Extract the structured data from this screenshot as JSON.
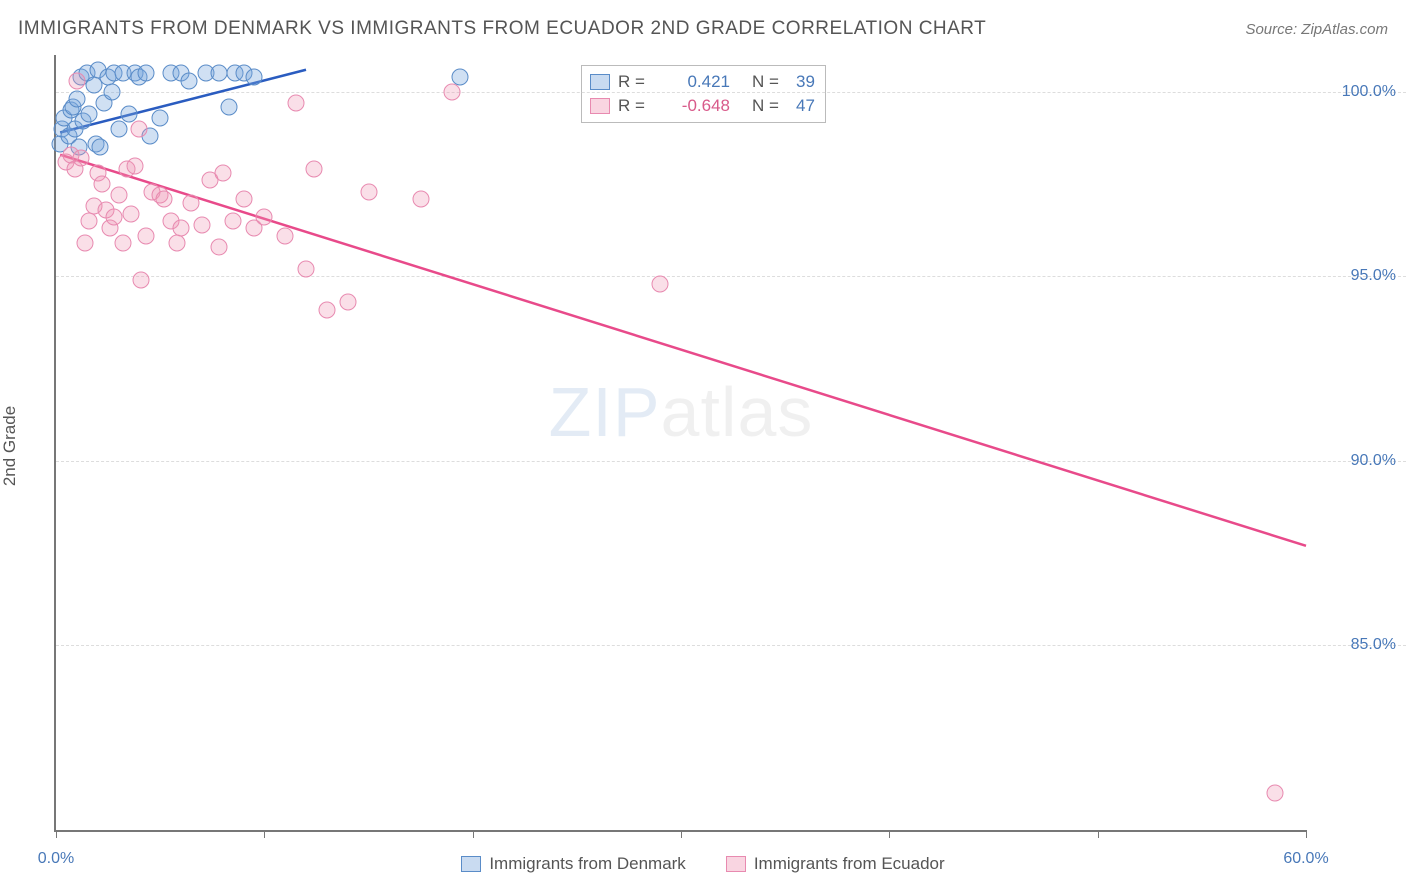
{
  "title": "IMMIGRANTS FROM DENMARK VS IMMIGRANTS FROM ECUADOR 2ND GRADE CORRELATION CHART",
  "source": "Source: ZipAtlas.com",
  "ylabel": "2nd Grade",
  "watermark_left": "ZIP",
  "watermark_right": "atlas",
  "chart": {
    "type": "scatter",
    "background_color": "#ffffff",
    "grid_color": "#dddddd",
    "axis_color": "#777777",
    "xlim": [
      0,
      60
    ],
    "ylim": [
      80,
      101
    ],
    "x_ticks": [
      0,
      10,
      20,
      30,
      40,
      50,
      60
    ],
    "x_tick_labels": [
      "0.0%",
      "",
      "",
      "",
      "",
      "",
      "60.0%"
    ],
    "y_ticks": [
      85,
      90,
      95,
      100
    ],
    "y_tick_labels": [
      "85.0%",
      "90.0%",
      "95.0%",
      "100.0%"
    ],
    "marker_radius": 8.5,
    "label_fontsize": 16,
    "label_color": "#4878b8",
    "series": [
      {
        "name": "Immigrants from Denmark",
        "color_fill": "rgba(120,165,220,0.35)",
        "color_stroke": "#5a8cc8",
        "trend_color": "#2a5cc0",
        "r": 0.421,
        "n": 39,
        "trendline": {
          "x1": 0.2,
          "y1": 98.9,
          "x2": 12,
          "y2": 100.6
        },
        "points": [
          [
            0.2,
            98.6
          ],
          [
            0.3,
            99.0
          ],
          [
            0.4,
            99.3
          ],
          [
            0.6,
            98.8
          ],
          [
            0.7,
            99.5
          ],
          [
            0.8,
            99.6
          ],
          [
            0.9,
            99.0
          ],
          [
            1.0,
            99.8
          ],
          [
            1.1,
            98.5
          ],
          [
            1.2,
            100.4
          ],
          [
            1.3,
            99.2
          ],
          [
            1.5,
            100.5
          ],
          [
            1.6,
            99.4
          ],
          [
            1.8,
            100.2
          ],
          [
            1.9,
            98.6
          ],
          [
            2.0,
            100.6
          ],
          [
            2.1,
            98.5
          ],
          [
            2.3,
            99.7
          ],
          [
            2.5,
            100.4
          ],
          [
            2.7,
            100.0
          ],
          [
            2.8,
            100.5
          ],
          [
            3.0,
            99.0
          ],
          [
            3.2,
            100.5
          ],
          [
            3.5,
            99.4
          ],
          [
            3.8,
            100.5
          ],
          [
            4.0,
            100.4
          ],
          [
            4.3,
            100.5
          ],
          [
            4.5,
            98.8
          ],
          [
            5.0,
            99.3
          ],
          [
            5.5,
            100.5
          ],
          [
            6.0,
            100.5
          ],
          [
            6.4,
            100.3
          ],
          [
            7.2,
            100.5
          ],
          [
            7.8,
            100.5
          ],
          [
            8.3,
            99.6
          ],
          [
            8.6,
            100.5
          ],
          [
            9.0,
            100.5
          ],
          [
            9.5,
            100.4
          ],
          [
            19.4,
            100.4
          ]
        ]
      },
      {
        "name": "Immigrants from Ecuador",
        "color_fill": "rgba(240,150,180,0.30)",
        "color_stroke": "#e88ab0",
        "trend_color": "#e84a8a",
        "r": -0.648,
        "n": 47,
        "trendline": {
          "x1": 0.2,
          "y1": 98.3,
          "x2": 60,
          "y2": 87.7
        },
        "points": [
          [
            0.5,
            98.1
          ],
          [
            0.7,
            98.3
          ],
          [
            0.9,
            97.9
          ],
          [
            1.0,
            100.3
          ],
          [
            1.2,
            98.2
          ],
          [
            1.4,
            95.9
          ],
          [
            1.6,
            96.5
          ],
          [
            1.8,
            96.9
          ],
          [
            2.0,
            97.8
          ],
          [
            2.2,
            97.5
          ],
          [
            2.4,
            96.8
          ],
          [
            2.6,
            96.3
          ],
          [
            2.8,
            96.6
          ],
          [
            3.0,
            97.2
          ],
          [
            3.2,
            95.9
          ],
          [
            3.4,
            97.9
          ],
          [
            3.6,
            96.7
          ],
          [
            3.8,
            98.0
          ],
          [
            4.0,
            99.0
          ],
          [
            4.1,
            94.9
          ],
          [
            4.3,
            96.1
          ],
          [
            4.6,
            97.3
          ],
          [
            5.0,
            97.2
          ],
          [
            5.2,
            97.1
          ],
          [
            5.5,
            96.5
          ],
          [
            5.8,
            95.9
          ],
          [
            6.0,
            96.3
          ],
          [
            6.5,
            97.0
          ],
          [
            7.0,
            96.4
          ],
          [
            7.4,
            97.6
          ],
          [
            7.8,
            95.8
          ],
          [
            8.0,
            97.8
          ],
          [
            8.5,
            96.5
          ],
          [
            9.0,
            97.1
          ],
          [
            9.5,
            96.3
          ],
          [
            10.0,
            96.6
          ],
          [
            11.0,
            96.1
          ],
          [
            11.5,
            99.7
          ],
          [
            12.0,
            95.2
          ],
          [
            12.4,
            97.9
          ],
          [
            13.0,
            94.1
          ],
          [
            14.0,
            94.3
          ],
          [
            15.0,
            97.3
          ],
          [
            17.5,
            97.1
          ],
          [
            19.0,
            100.0
          ],
          [
            29.0,
            94.8
          ],
          [
            58.5,
            81.0
          ]
        ]
      }
    ]
  },
  "legend_top": {
    "r_label": "R =",
    "n_label": "N =",
    "rows": [
      {
        "r": "0.421",
        "n": "39",
        "cls": "blue"
      },
      {
        "r": "-0.648",
        "n": "47",
        "cls": "pink"
      }
    ]
  },
  "legend_bottom": [
    {
      "label": "Immigrants from Denmark",
      "cls": "blue"
    },
    {
      "label": "Immigrants from Ecuador",
      "cls": "pink"
    }
  ]
}
